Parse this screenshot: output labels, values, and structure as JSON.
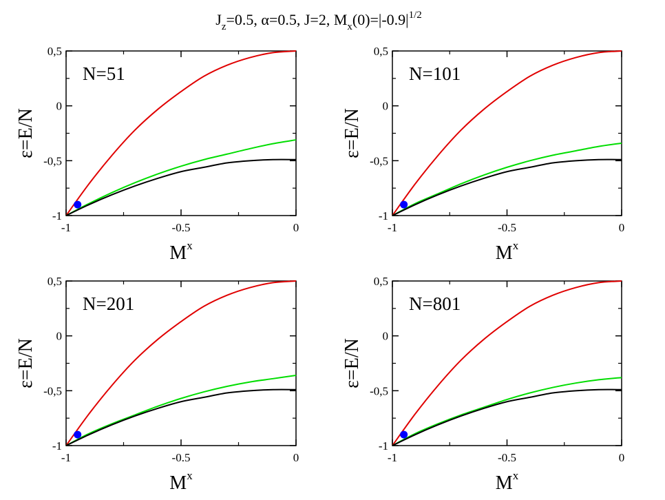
{
  "figure": {
    "title": {
      "parts": [
        {
          "text": "J",
          "style": "normal"
        },
        {
          "text": "z",
          "style": "sub"
        },
        {
          "text": "=0.5, ",
          "style": "normal"
        },
        {
          "text": "α",
          "style": "normal"
        },
        {
          "text": "=0.5, J=2, M",
          "style": "normal"
        },
        {
          "text": "x",
          "style": "sub"
        },
        {
          "text": "(0)=|-0.9|",
          "style": "normal"
        },
        {
          "text": "1/2",
          "style": "sup"
        }
      ]
    }
  },
  "chart_data": [
    {
      "type": "line",
      "panel_label": "N=51",
      "xlabel": {
        "base": "M",
        "sup": "x"
      },
      "ylabel": "ε=E/N",
      "xlim": [
        -1,
        0
      ],
      "ylim": [
        -1,
        0.5
      ],
      "xticks": [
        "-1",
        "-0.5",
        "0"
      ],
      "yticks": [
        "-1",
        "-0,5",
        "0",
        "0,5"
      ],
      "grid": false,
      "series": [
        {
          "color": "#e00000",
          "x": [
            -1,
            -0.9,
            -0.8,
            -0.7,
            -0.6,
            -0.5,
            -0.4,
            -0.3,
            -0.2,
            -0.1,
            0
          ],
          "y": [
            -1,
            -0.71,
            -0.45,
            -0.22,
            -0.03,
            0.13,
            0.27,
            0.37,
            0.44,
            0.485,
            0.5
          ]
        },
        {
          "color": "#00dd00",
          "x": [
            -1,
            -0.9,
            -0.8,
            -0.7,
            -0.6,
            -0.5,
            -0.4,
            -0.3,
            -0.2,
            -0.1,
            0
          ],
          "y": [
            -1,
            -0.89,
            -0.79,
            -0.7,
            -0.62,
            -0.55,
            -0.49,
            -0.44,
            -0.39,
            -0.345,
            -0.31
          ]
        },
        {
          "color": "#000000",
          "x": [
            -1,
            -0.9,
            -0.8,
            -0.7,
            -0.6,
            -0.5,
            -0.4,
            -0.3,
            -0.2,
            -0.1,
            0
          ],
          "y": [
            -1,
            -0.9,
            -0.81,
            -0.73,
            -0.66,
            -0.6,
            -0.56,
            -0.52,
            -0.5,
            -0.49,
            -0.49
          ]
        }
      ],
      "marker": {
        "x": -0.95,
        "y": -0.9,
        "color": "#0000ff"
      }
    },
    {
      "type": "line",
      "panel_label": "N=101",
      "xlabel": {
        "base": "M",
        "sup": "x"
      },
      "ylabel": "ε=E/N",
      "xlim": [
        -1,
        0
      ],
      "ylim": [
        -1,
        0.5
      ],
      "xticks": [
        "-1",
        "-0.5",
        "0"
      ],
      "yticks": [
        "-1",
        "-0,5",
        "0",
        "0,5"
      ],
      "grid": false,
      "series": [
        {
          "color": "#e00000",
          "x": [
            -1,
            -0.9,
            -0.8,
            -0.7,
            -0.6,
            -0.5,
            -0.4,
            -0.3,
            -0.2,
            -0.1,
            0
          ],
          "y": [
            -1,
            -0.71,
            -0.45,
            -0.22,
            -0.03,
            0.13,
            0.27,
            0.37,
            0.44,
            0.485,
            0.5
          ]
        },
        {
          "color": "#00dd00",
          "x": [
            -1,
            -0.9,
            -0.8,
            -0.7,
            -0.6,
            -0.5,
            -0.4,
            -0.3,
            -0.2,
            -0.1,
            0
          ],
          "y": [
            -1,
            -0.89,
            -0.8,
            -0.71,
            -0.63,
            -0.56,
            -0.5,
            -0.45,
            -0.41,
            -0.37,
            -0.34
          ]
        },
        {
          "color": "#000000",
          "x": [
            -1,
            -0.9,
            -0.8,
            -0.7,
            -0.6,
            -0.5,
            -0.4,
            -0.3,
            -0.2,
            -0.1,
            0
          ],
          "y": [
            -1,
            -0.9,
            -0.81,
            -0.73,
            -0.66,
            -0.6,
            -0.56,
            -0.52,
            -0.5,
            -0.49,
            -0.49
          ]
        }
      ],
      "marker": {
        "x": -0.95,
        "y": -0.9,
        "color": "#0000ff"
      }
    },
    {
      "type": "line",
      "panel_label": "N=201",
      "xlabel": {
        "base": "M",
        "sup": "x"
      },
      "ylabel": "ε=E/N",
      "xlim": [
        -1,
        0
      ],
      "ylim": [
        -1,
        0.5
      ],
      "xticks": [
        "-1",
        "-0.5",
        "0"
      ],
      "yticks": [
        "-1",
        "-0,5",
        "0",
        "0,5"
      ],
      "grid": false,
      "series": [
        {
          "color": "#e00000",
          "x": [
            -1,
            -0.9,
            -0.8,
            -0.7,
            -0.6,
            -0.5,
            -0.4,
            -0.3,
            -0.2,
            -0.1,
            0
          ],
          "y": [
            -1,
            -0.71,
            -0.45,
            -0.22,
            -0.03,
            0.13,
            0.27,
            0.37,
            0.44,
            0.485,
            0.5
          ]
        },
        {
          "color": "#00dd00",
          "x": [
            -1,
            -0.9,
            -0.8,
            -0.7,
            -0.6,
            -0.5,
            -0.4,
            -0.3,
            -0.2,
            -0.1,
            0
          ],
          "y": [
            -1,
            -0.89,
            -0.8,
            -0.72,
            -0.64,
            -0.57,
            -0.51,
            -0.46,
            -0.42,
            -0.39,
            -0.36
          ]
        },
        {
          "color": "#000000",
          "x": [
            -1,
            -0.9,
            -0.8,
            -0.7,
            -0.6,
            -0.5,
            -0.4,
            -0.3,
            -0.2,
            -0.1,
            0
          ],
          "y": [
            -1,
            -0.9,
            -0.81,
            -0.73,
            -0.66,
            -0.6,
            -0.56,
            -0.52,
            -0.5,
            -0.49,
            -0.49
          ]
        }
      ],
      "marker": {
        "x": -0.95,
        "y": -0.9,
        "color": "#0000ff"
      }
    },
    {
      "type": "line",
      "panel_label": "N=801",
      "xlabel": {
        "base": "M",
        "sup": "x"
      },
      "ylabel": "ε=E/N",
      "xlim": [
        -1,
        0
      ],
      "ylim": [
        -1,
        0.5
      ],
      "xticks": [
        "-1",
        "-0.5",
        "0"
      ],
      "yticks": [
        "-1",
        "-0,5",
        "0",
        "0,5"
      ],
      "grid": false,
      "series": [
        {
          "color": "#e00000",
          "x": [
            -1,
            -0.9,
            -0.8,
            -0.7,
            -0.6,
            -0.5,
            -0.4,
            -0.3,
            -0.2,
            -0.1,
            0
          ],
          "y": [
            -1,
            -0.71,
            -0.45,
            -0.22,
            -0.03,
            0.13,
            0.27,
            0.37,
            0.44,
            0.485,
            0.5
          ]
        },
        {
          "color": "#00dd00",
          "x": [
            -1,
            -0.9,
            -0.8,
            -0.7,
            -0.6,
            -0.5,
            -0.4,
            -0.3,
            -0.2,
            -0.1,
            0
          ],
          "y": [
            -1,
            -0.89,
            -0.8,
            -0.72,
            -0.65,
            -0.58,
            -0.52,
            -0.47,
            -0.43,
            -0.4,
            -0.38
          ]
        },
        {
          "color": "#000000",
          "x": [
            -1,
            -0.9,
            -0.8,
            -0.7,
            -0.6,
            -0.5,
            -0.4,
            -0.3,
            -0.2,
            -0.1,
            0
          ],
          "y": [
            -1,
            -0.9,
            -0.81,
            -0.73,
            -0.66,
            -0.6,
            -0.56,
            -0.52,
            -0.5,
            -0.49,
            -0.49
          ]
        }
      ],
      "marker": {
        "x": -0.95,
        "y": -0.9,
        "color": "#0000ff"
      }
    }
  ]
}
